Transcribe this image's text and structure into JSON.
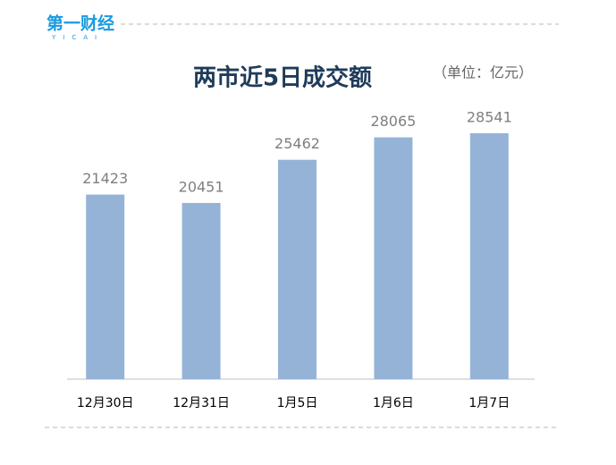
{
  "logo": {
    "text": "第一财经",
    "sub": "YICAI"
  },
  "chart_data": {
    "type": "bar",
    "title": "两市近5日成交额",
    "unit": "（单位：亿元）",
    "categories": [
      "12月30日",
      "12月31日",
      "1月5日",
      "1月6日",
      "1月7日"
    ],
    "values": [
      21423,
      20451,
      25462,
      28065,
      28541
    ],
    "color": "#95b3d7"
  }
}
